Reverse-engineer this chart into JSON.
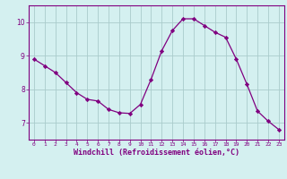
{
  "x": [
    0,
    1,
    2,
    3,
    4,
    5,
    6,
    7,
    8,
    9,
    10,
    11,
    12,
    13,
    14,
    15,
    16,
    17,
    18,
    19,
    20,
    21,
    22,
    23
  ],
  "y": [
    8.9,
    8.7,
    8.5,
    8.2,
    7.9,
    7.7,
    7.65,
    7.4,
    7.3,
    7.28,
    7.55,
    8.3,
    9.15,
    9.75,
    10.1,
    10.1,
    9.9,
    9.7,
    9.55,
    8.9,
    8.15,
    7.35,
    7.05,
    6.8
  ],
  "line_color": "#800080",
  "marker": "D",
  "marker_size": 2.2,
  "bg_color": "#d4f0f0",
  "grid_color": "#aacccc",
  "xlabel": "Windchill (Refroidissement éolien,°C)",
  "xlabel_color": "#800080",
  "tick_color": "#800080",
  "spine_color": "#800080",
  "ylim": [
    6.5,
    10.5
  ],
  "xlim": [
    -0.5,
    23.5
  ],
  "yticks": [
    7,
    8,
    9,
    10
  ],
  "xticks": [
    0,
    1,
    2,
    3,
    4,
    5,
    6,
    7,
    8,
    9,
    10,
    11,
    12,
    13,
    14,
    15,
    16,
    17,
    18,
    19,
    20,
    21,
    22,
    23
  ]
}
